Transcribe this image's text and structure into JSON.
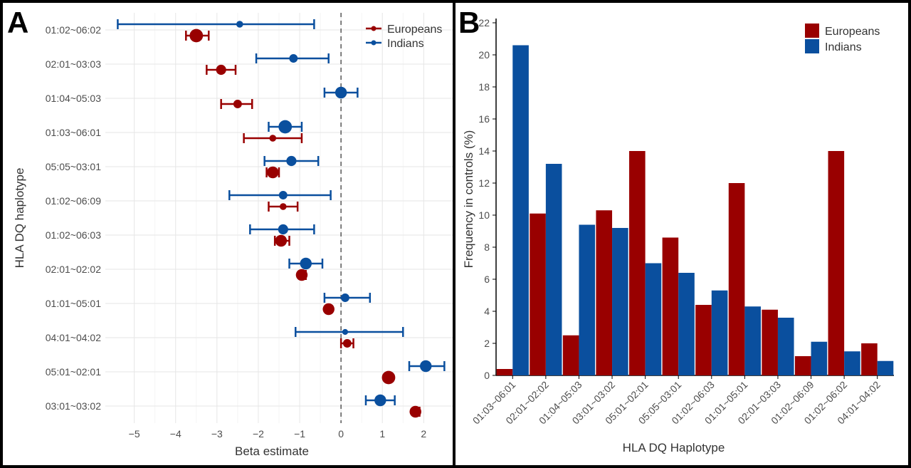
{
  "panels": {
    "a_label": "A",
    "b_label": "B"
  },
  "colors": {
    "europeans": "#990000",
    "indians": "#0a4f9e",
    "grid": "#e6e6e6",
    "axis_text": "#4d4d4d"
  },
  "chart_data": [
    {
      "type": "scatter",
      "subtype": "forest-plot",
      "title": "",
      "xlabel": "Beta estimate",
      "ylabel": "HLA DQ haplotype",
      "xlim": [
        -5.7,
        2.7
      ],
      "xticks": [
        -5,
        -4,
        -3,
        -2,
        -1,
        0,
        1,
        2
      ],
      "xtick_labels": [
        "−5",
        "−4",
        "−3",
        "−2",
        "−1",
        "0",
        "1",
        "2"
      ],
      "reference_line": 0,
      "grid": true,
      "legend": {
        "position": "top-right",
        "entries": [
          "Europeans",
          "Indians"
        ]
      },
      "categories": [
        "01:02~06:02",
        "02:01~03:03",
        "01:04~05:03",
        "01:03~06:01",
        "05:05~03:01",
        "01:02~06:09",
        "01:02~06:03",
        "02:01~02:02",
        "01:01~05:01",
        "04:01~04:02",
        "05:01~02:01",
        "03:01~03:02"
      ],
      "series": [
        {
          "name": "Europeans",
          "estimate": [
            -3.5,
            -2.9,
            -2.5,
            -1.65,
            -1.65,
            -1.4,
            -1.45,
            -0.95,
            -0.3,
            0.15,
            1.15,
            1.8
          ],
          "ci_low": [
            -3.75,
            -3.25,
            -2.9,
            -2.35,
            -1.8,
            -1.75,
            -1.6,
            -1.0,
            -0.35,
            0.0,
            1.1,
            1.75
          ],
          "ci_high": [
            -3.2,
            -2.55,
            -2.15,
            -0.95,
            -1.5,
            -1.05,
            -1.25,
            -0.85,
            -0.25,
            0.3,
            1.2,
            1.9
          ],
          "point_size": [
            3,
            2,
            1.5,
            1,
            2.5,
            1,
            2.5,
            2.5,
            2.5,
            1.5,
            3,
            2.5
          ]
        },
        {
          "name": "Indians",
          "estimate": [
            -2.45,
            -1.15,
            0.0,
            -1.35,
            -1.2,
            -1.4,
            -1.4,
            -0.85,
            0.1,
            0.1,
            2.05,
            0.95
          ],
          "ci_low": [
            -5.4,
            -2.05,
            -0.4,
            -1.75,
            -1.85,
            -2.7,
            -2.2,
            -1.25,
            -0.4,
            -1.1,
            1.65,
            0.6
          ],
          "ci_high": [
            -0.65,
            -0.3,
            0.4,
            -0.95,
            -0.55,
            -0.25,
            -0.65,
            -0.45,
            0.7,
            1.5,
            2.5,
            1.3
          ],
          "point_size": [
            1,
            1.5,
            2.5,
            3,
            2,
            1.5,
            2,
            2.5,
            1.5,
            0.7,
            2.5,
            2.5
          ]
        }
      ]
    },
    {
      "type": "bar",
      "title": "",
      "xlabel": "HLA DQ Haplotype",
      "ylabel": "Frequency in controls (%)",
      "ylim": [
        0,
        22
      ],
      "yticks": [
        0,
        2,
        4,
        6,
        8,
        10,
        12,
        14,
        16,
        18,
        20,
        22
      ],
      "grid": false,
      "legend": {
        "position": "top-right",
        "entries": [
          "Europeans",
          "Indians"
        ]
      },
      "categories": [
        "01:03~06:01",
        "02:01~02:02",
        "01:04~05:03",
        "03:01~03:02",
        "05:01~02:01",
        "05:05~03:01",
        "01:02~06:03",
        "01:01~05:01",
        "02:01~03:03",
        "01:02~06:09",
        "01:02~06:02",
        "04:01~04:02"
      ],
      "series": [
        {
          "name": "Europeans",
          "values": [
            0.4,
            10.1,
            2.5,
            10.3,
            14.0,
            8.6,
            4.4,
            12.0,
            4.1,
            1.2,
            14.0,
            2.0
          ]
        },
        {
          "name": "Indians",
          "values": [
            20.6,
            13.2,
            9.4,
            9.2,
            7.0,
            6.4,
            5.3,
            4.3,
            3.6,
            2.1,
            1.5,
            0.9
          ]
        }
      ]
    }
  ]
}
